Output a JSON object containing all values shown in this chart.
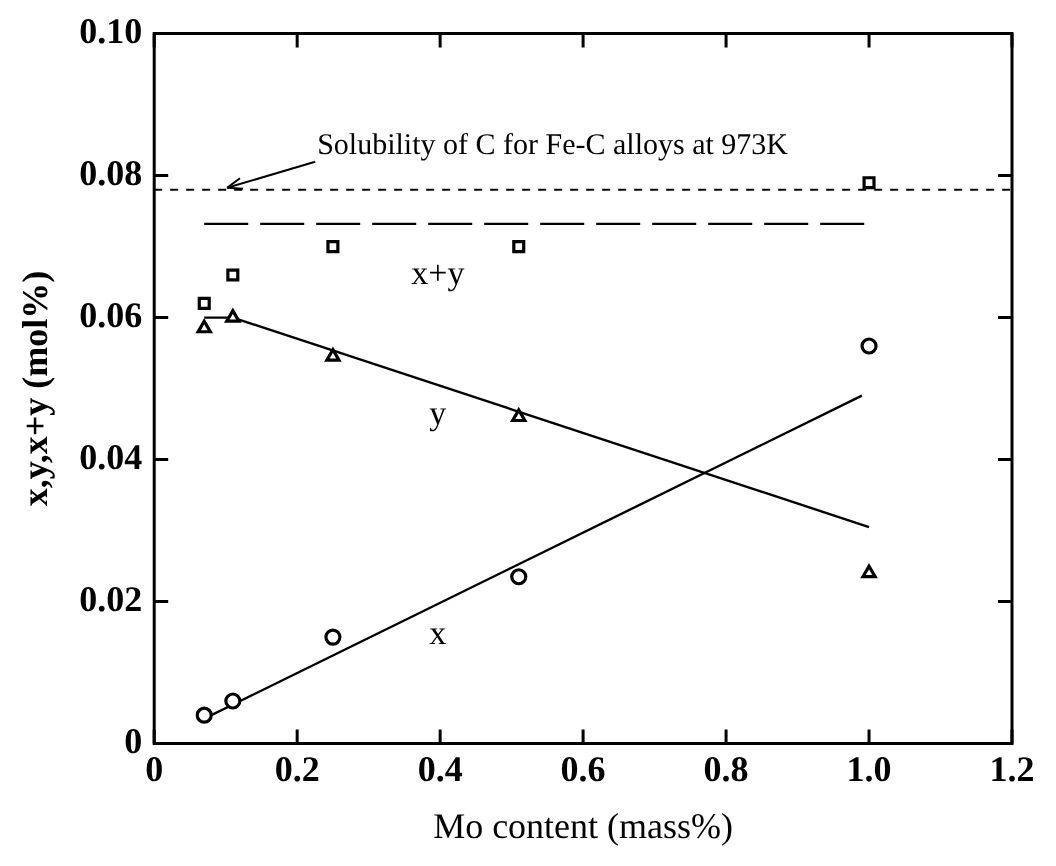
{
  "chart_data": {
    "type": "scatter",
    "xlabel": "Mo content (mass%)",
    "ylabel": "x,y,x+y (mol%)",
    "xlim": [
      0,
      1.2
    ],
    "ylim": [
      0,
      0.1
    ],
    "xticks": [
      0,
      0.2,
      0.4,
      0.6,
      0.8,
      {
        "value": 1,
        "label": "1.0"
      },
      1.2
    ],
    "yticks": [
      0,
      0.02,
      0.04,
      0.06,
      0.08,
      {
        "value": 0.1,
        "label": "0.10"
      }
    ],
    "grid": false,
    "legend": false,
    "series": [
      {
        "name": "x",
        "marker": "circle",
        "color": "#000000",
        "x": [
          0.07,
          0.11,
          0.25,
          0.51,
          1.0
        ],
        "values": [
          0.004,
          0.006,
          0.015,
          0.0235,
          0.056
        ]
      },
      {
        "name": "y",
        "marker": "triangle",
        "color": "#000000",
        "x": [
          0.07,
          0.11,
          0.25,
          0.51,
          1.0
        ],
        "values": [
          0.0585,
          0.06,
          0.0545,
          0.046,
          0.024
        ]
      },
      {
        "name": "x+y",
        "marker": "square",
        "color": "#000000",
        "x": [
          0.07,
          0.11,
          0.25,
          0.51,
          1.0
        ],
        "values": [
          0.062,
          0.066,
          0.07,
          0.07,
          0.079
        ]
      },
      {
        "type": "line",
        "marker": "none",
        "line_style": "solid",
        "color": "#000000",
        "x": [
          0.08,
          0.99
        ],
        "values": [
          0.004,
          0.049
        ]
      },
      {
        "type": "line",
        "marker": "none",
        "line_style": "solid",
        "color": "#000000",
        "x": [
          0.07,
          0.11,
          1.0
        ],
        "values": [
          0.06,
          0.06,
          0.0305
        ]
      },
      {
        "type": "line",
        "marker": "none",
        "line_style": "dashed",
        "color": "#000000",
        "x": [
          0.07,
          1.0
        ],
        "values": [
          0.0732,
          0.0732
        ]
      }
    ],
    "ref_lines": [
      {
        "axis": "y",
        "value": 0.078,
        "label": "Solubility of C for Fe-C alloys at 973K",
        "line_style": "dotted",
        "color": "#000000"
      }
    ]
  }
}
